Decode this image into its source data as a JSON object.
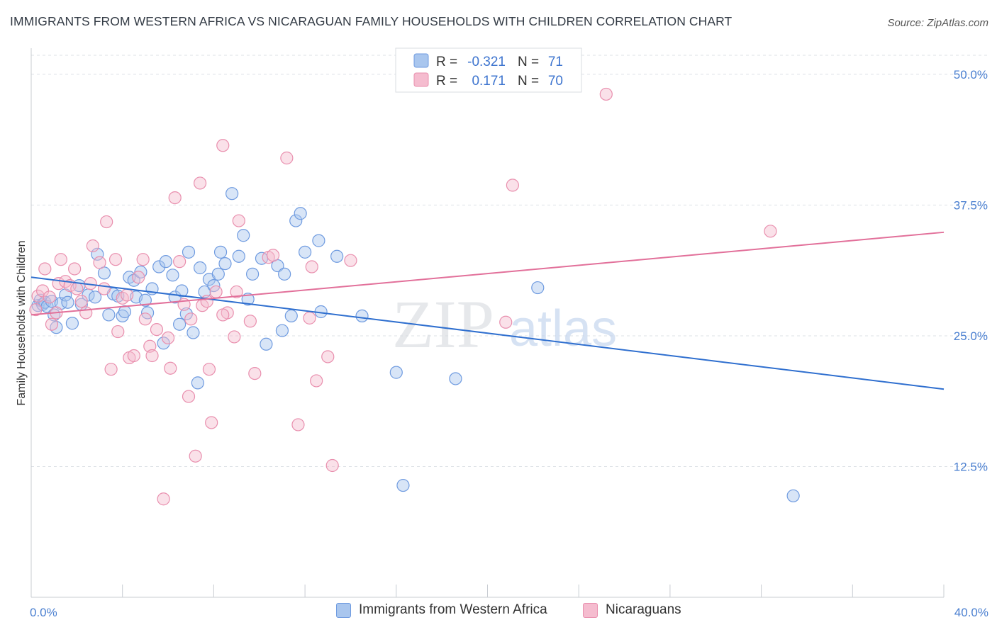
{
  "header": {
    "title": "IMMIGRANTS FROM WESTERN AFRICA VS NICARAGUAN FAMILY HOUSEHOLDS WITH CHILDREN CORRELATION CHART",
    "source": "Source: ZipAtlas.com"
  },
  "watermark": {
    "zip": "ZIP",
    "atlas": "atlas"
  },
  "legend_top": {
    "r_label": "R =",
    "n_label": "N =",
    "rows": [
      {
        "r": "-0.321",
        "n": "71"
      },
      {
        "r": "0.171",
        "n": "70"
      }
    ]
  },
  "colors": {
    "blue_fill": "#a9c6ee",
    "blue_stroke": "#6f9be0",
    "blue_line": "#2f6fcf",
    "pink_fill": "#f5bccf",
    "pink_stroke": "#e98fae",
    "pink_line": "#e2709a",
    "tick_label": "#4a7fd0",
    "grid": "#dde1e6"
  },
  "chart_data": {
    "type": "scatter",
    "title": "IMMIGRANTS FROM WESTERN AFRICA VS NICARAGUAN FAMILY HOUSEHOLDS WITH CHILDREN CORRELATION CHART",
    "xlabel": "",
    "ylabel": "Family Households with Children",
    "xlim": [
      0,
      40
    ],
    "ylim": [
      0,
      52.5
    ],
    "x_tick_labels": [
      "0.0%",
      "40.0%"
    ],
    "y_ticks": [
      12.5,
      25.0,
      37.5,
      50.0
    ],
    "y_tick_labels": [
      "12.5%",
      "25.0%",
      "37.5%",
      "50.0%"
    ],
    "grid": true,
    "legend_position": "top-center",
    "series": [
      {
        "name": "Immigrants from Western Africa",
        "r": -0.321,
        "n": 71,
        "trend": {
          "x": [
            0,
            40
          ],
          "y": [
            30.6,
            19.9
          ]
        },
        "points": [
          [
            0.3,
            27.9
          ],
          [
            0.4,
            28.4
          ],
          [
            0.5,
            28.0
          ],
          [
            0.6,
            28.2
          ],
          [
            0.7,
            27.8
          ],
          [
            0.9,
            28.3
          ],
          [
            1.0,
            27.0
          ],
          [
            1.1,
            25.8
          ],
          [
            1.3,
            28.1
          ],
          [
            1.5,
            28.9
          ],
          [
            1.6,
            28.2
          ],
          [
            1.8,
            26.2
          ],
          [
            2.1,
            29.8
          ],
          [
            2.2,
            28.0
          ],
          [
            2.5,
            28.9
          ],
          [
            2.8,
            28.7
          ],
          [
            2.9,
            32.8
          ],
          [
            3.2,
            31.0
          ],
          [
            3.4,
            27.0
          ],
          [
            3.6,
            29.0
          ],
          [
            3.8,
            28.8
          ],
          [
            4.0,
            26.9
          ],
          [
            4.1,
            27.3
          ],
          [
            4.3,
            30.6
          ],
          [
            4.5,
            30.3
          ],
          [
            4.6,
            28.7
          ],
          [
            4.8,
            31.1
          ],
          [
            5.0,
            28.4
          ],
          [
            5.1,
            27.2
          ],
          [
            5.3,
            29.5
          ],
          [
            5.6,
            31.6
          ],
          [
            5.8,
            24.3
          ],
          [
            5.9,
            32.1
          ],
          [
            6.2,
            30.8
          ],
          [
            6.3,
            28.7
          ],
          [
            6.5,
            26.1
          ],
          [
            6.6,
            29.3
          ],
          [
            6.8,
            27.1
          ],
          [
            6.9,
            33.0
          ],
          [
            7.1,
            25.3
          ],
          [
            7.3,
            20.5
          ],
          [
            7.4,
            31.5
          ],
          [
            7.6,
            29.2
          ],
          [
            7.8,
            30.4
          ],
          [
            8.0,
            29.8
          ],
          [
            8.2,
            30.9
          ],
          [
            8.3,
            33.0
          ],
          [
            8.5,
            31.9
          ],
          [
            8.8,
            38.6
          ],
          [
            9.1,
            32.6
          ],
          [
            9.3,
            34.6
          ],
          [
            9.5,
            28.5
          ],
          [
            9.7,
            30.9
          ],
          [
            10.1,
            32.4
          ],
          [
            10.3,
            24.2
          ],
          [
            10.8,
            31.7
          ],
          [
            11.0,
            25.5
          ],
          [
            11.1,
            30.9
          ],
          [
            11.4,
            26.9
          ],
          [
            11.6,
            36.0
          ],
          [
            11.8,
            36.7
          ],
          [
            12.0,
            33.0
          ],
          [
            12.6,
            34.1
          ],
          [
            12.7,
            27.3
          ],
          [
            13.4,
            32.6
          ],
          [
            14.5,
            26.9
          ],
          [
            16.0,
            21.5
          ],
          [
            16.3,
            10.7
          ],
          [
            18.6,
            20.9
          ],
          [
            22.2,
            29.6
          ],
          [
            33.4,
            9.7
          ]
        ]
      },
      {
        "name": "Nicaraguans",
        "r": 0.171,
        "n": 70,
        "trend": {
          "x": [
            0,
            40
          ],
          "y": [
            27.0,
            34.9
          ]
        },
        "points": [
          [
            0.2,
            27.5
          ],
          [
            0.3,
            28.8
          ],
          [
            0.5,
            29.3
          ],
          [
            0.6,
            31.4
          ],
          [
            0.8,
            28.7
          ],
          [
            0.9,
            26.1
          ],
          [
            1.1,
            27.2
          ],
          [
            1.2,
            30.0
          ],
          [
            1.3,
            32.3
          ],
          [
            1.5,
            30.2
          ],
          [
            1.7,
            29.8
          ],
          [
            1.9,
            31.4
          ],
          [
            2.0,
            29.5
          ],
          [
            2.2,
            28.3
          ],
          [
            2.4,
            27.2
          ],
          [
            2.6,
            30.0
          ],
          [
            2.7,
            33.6
          ],
          [
            3.0,
            32.0
          ],
          [
            3.2,
            29.5
          ],
          [
            3.3,
            35.9
          ],
          [
            3.5,
            21.8
          ],
          [
            3.7,
            32.3
          ],
          [
            3.8,
            25.4
          ],
          [
            4.0,
            28.6
          ],
          [
            4.2,
            28.9
          ],
          [
            4.3,
            22.9
          ],
          [
            4.5,
            23.1
          ],
          [
            4.7,
            30.6
          ],
          [
            4.9,
            32.3
          ],
          [
            5.0,
            26.6
          ],
          [
            5.2,
            24.0
          ],
          [
            5.3,
            23.1
          ],
          [
            5.5,
            25.6
          ],
          [
            5.8,
            9.4
          ],
          [
            6.0,
            24.8
          ],
          [
            6.1,
            21.9
          ],
          [
            6.3,
            38.2
          ],
          [
            6.5,
            32.1
          ],
          [
            6.7,
            28.0
          ],
          [
            6.9,
            19.2
          ],
          [
            7.0,
            26.6
          ],
          [
            7.2,
            13.5
          ],
          [
            7.4,
            39.6
          ],
          [
            7.5,
            27.9
          ],
          [
            7.7,
            28.3
          ],
          [
            7.8,
            21.8
          ],
          [
            7.9,
            16.7
          ],
          [
            8.1,
            29.2
          ],
          [
            8.4,
            43.2
          ],
          [
            8.6,
            27.2
          ],
          [
            8.9,
            24.9
          ],
          [
            9.0,
            29.2
          ],
          [
            9.1,
            36.0
          ],
          [
            9.6,
            26.4
          ],
          [
            9.8,
            21.4
          ],
          [
            10.4,
            32.5
          ],
          [
            10.6,
            32.7
          ],
          [
            11.2,
            42.0
          ],
          [
            11.7,
            16.5
          ],
          [
            12.2,
            26.7
          ],
          [
            12.3,
            31.6
          ],
          [
            12.5,
            20.7
          ],
          [
            13.0,
            23.0
          ],
          [
            13.2,
            12.6
          ],
          [
            14.0,
            32.2
          ],
          [
            20.8,
            26.3
          ],
          [
            21.1,
            39.4
          ],
          [
            32.4,
            35.0
          ],
          [
            25.2,
            48.1
          ],
          [
            8.4,
            27.0
          ]
        ]
      }
    ]
  }
}
